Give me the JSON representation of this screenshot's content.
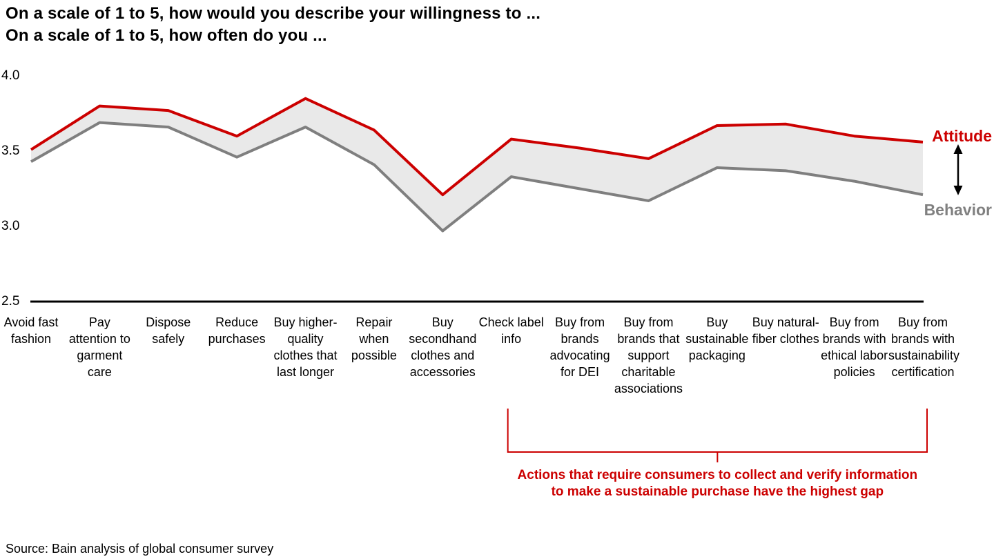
{
  "title": {
    "line1": "On a scale of 1 to 5, how would you describe your willingness to ...",
    "line2": "On a scale of 1 to 5, how often do you ..."
  },
  "series_labels": {
    "attitude": "Attitude",
    "behavior": "Behavior"
  },
  "annotation": {
    "line1": "Actions that require consumers to collect and verify information",
    "line2": "to make a sustainable purchase have the highest gap",
    "bracket_start_category": "Check label info",
    "bracket_end_category": "Buy from brands with sustainability certification"
  },
  "source": "Source: Bain analysis of global consumer survey",
  "colors": {
    "attitude": "#cc0000",
    "behavior": "#7f7f7f",
    "band": "#e9e9e9",
    "axis": "#000000",
    "annotation": "#cc0000",
    "arrow": "#000000"
  },
  "chart_data": {
    "type": "line",
    "title": "On a scale of 1 to 5, how would you describe your willingness to ... / how often do you ...",
    "categories": [
      "Avoid fast fashion",
      "Pay attention to garment care",
      "Dispose safely",
      "Reduce purchases",
      "Buy higher-quality clothes that last longer",
      "Repair when possible",
      "Buy secondhand clothes and accessories",
      "Check label info",
      "Buy from brands advocating for DEI",
      "Buy from brands that support charitable associations",
      "Buy sustainable packaging",
      "Buy natural-fiber clothes",
      "Buy from brands with ethical labor policies",
      "Buy from brands with sustainability certification"
    ],
    "series": [
      {
        "name": "Attitude",
        "color": "#cc0000",
        "values": [
          3.51,
          3.8,
          3.77,
          3.6,
          3.85,
          3.64,
          3.21,
          3.58,
          3.52,
          3.45,
          3.67,
          3.68,
          3.6,
          3.56
        ]
      },
      {
        "name": "Behavior",
        "color": "#7f7f7f",
        "values": [
          3.43,
          3.69,
          3.66,
          3.46,
          3.66,
          3.41,
          2.97,
          3.33,
          3.25,
          3.17,
          3.39,
          3.37,
          3.3,
          3.21
        ]
      }
    ],
    "ylim": [
      2.5,
      4.0
    ],
    "yticks": [
      4.0,
      3.5,
      3.0,
      2.5
    ],
    "grid": false,
    "legend_position": "right-of-last-point",
    "band_between_series": true,
    "bracket_category_range": [
      7,
      13
    ]
  }
}
